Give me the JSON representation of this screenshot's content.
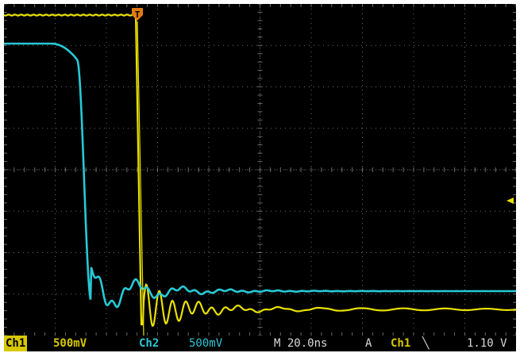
{
  "colors": {
    "ch1": "#e9e100",
    "ch2": "#27c9d6",
    "trigger": "#e07a12",
    "grid": "#6a6a6a",
    "background": "#000000"
  },
  "icons": {
    "trigger_marker": "T",
    "trigger_level_arrow": "left-arrow",
    "slope_falling": "falling-edge"
  },
  "status": {
    "ch1_label": "Ch1",
    "ch1_scale": "500mV",
    "ch2_label": "Ch2",
    "ch2_scale": "500mV",
    "timebase": "M 20.0ns",
    "trigger_mode": "A",
    "trigger_source": "Ch1",
    "trigger_slope_glyph": "╲",
    "trigger_level": "1.10 V"
  }
}
